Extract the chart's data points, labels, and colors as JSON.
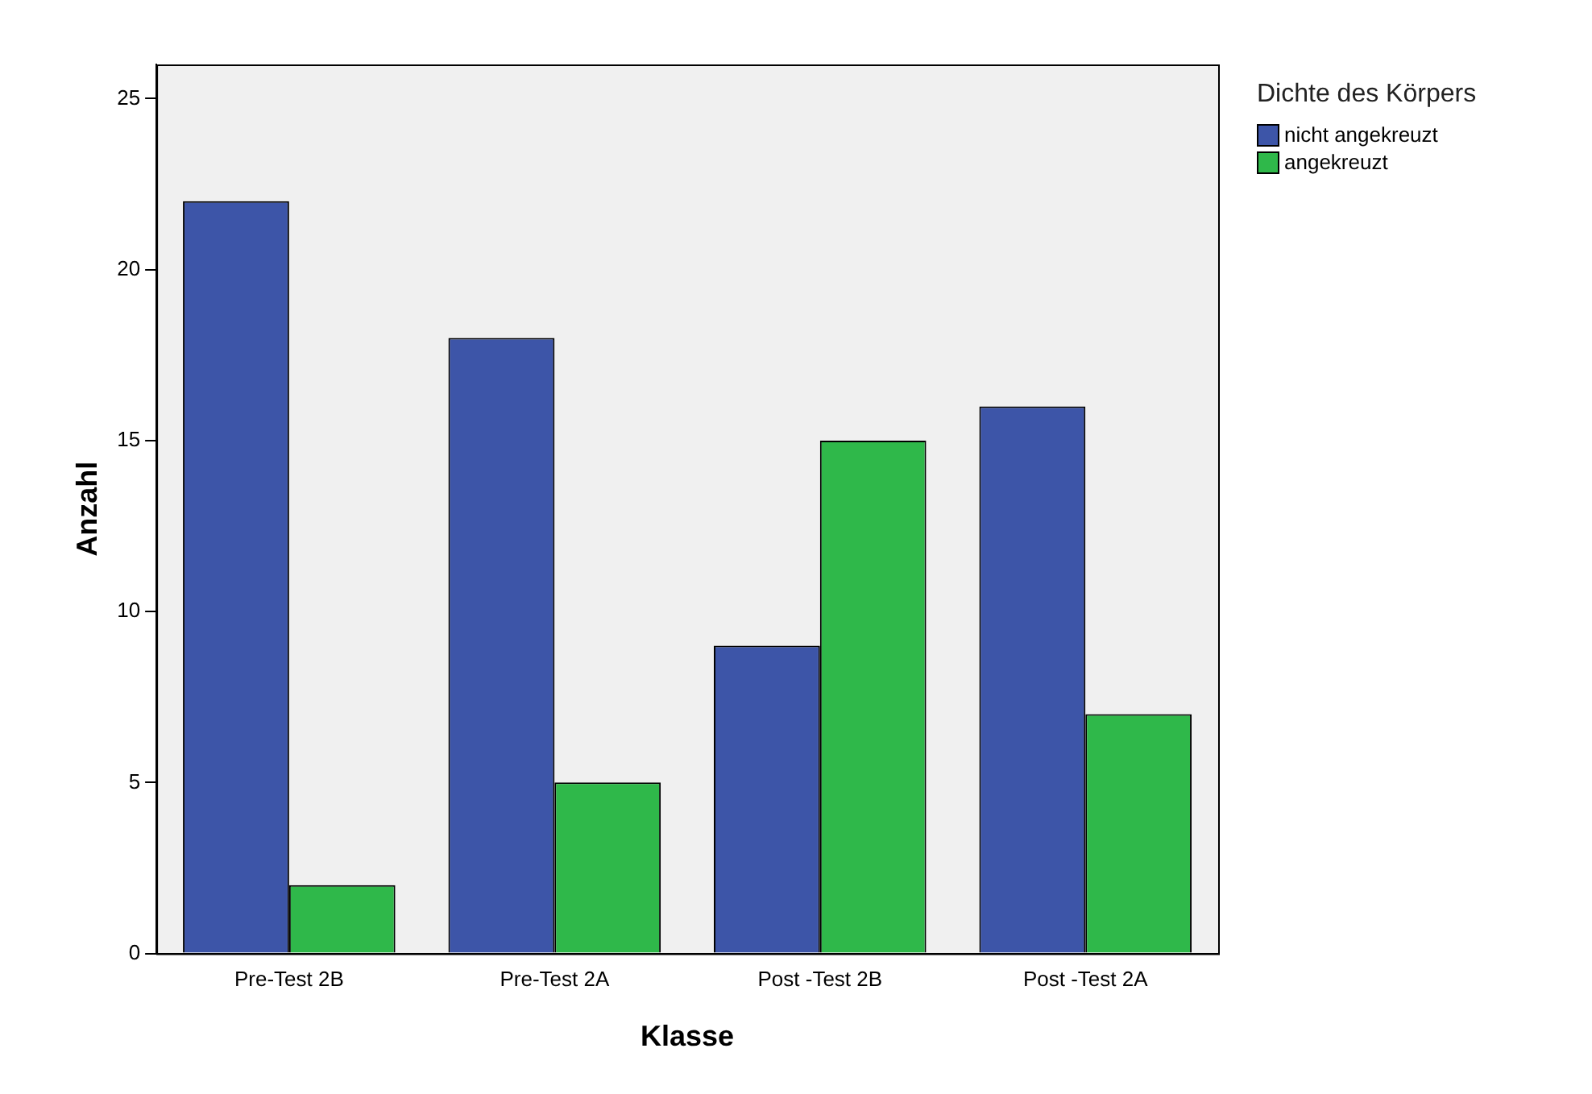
{
  "chart_data": {
    "type": "bar",
    "xlabel": "Klasse",
    "ylabel": "Anzahl",
    "legend_title": "Dichte des Körpers",
    "categories": [
      "Pre-Test 2B",
      "Pre-Test 2A",
      "Post -Test 2B",
      "Post -Test 2A"
    ],
    "series": [
      {
        "name": "nicht angekreuzt",
        "color": "#3d55a8",
        "values": [
          22,
          18,
          9,
          16
        ]
      },
      {
        "name": "angekreuzt",
        "color": "#2fb84a",
        "values": [
          2,
          5,
          15,
          7
        ]
      }
    ],
    "ylim": [
      0,
      26
    ],
    "yticks": [
      0,
      5,
      10,
      15,
      20,
      25
    ],
    "grid": false,
    "legend": "right"
  }
}
